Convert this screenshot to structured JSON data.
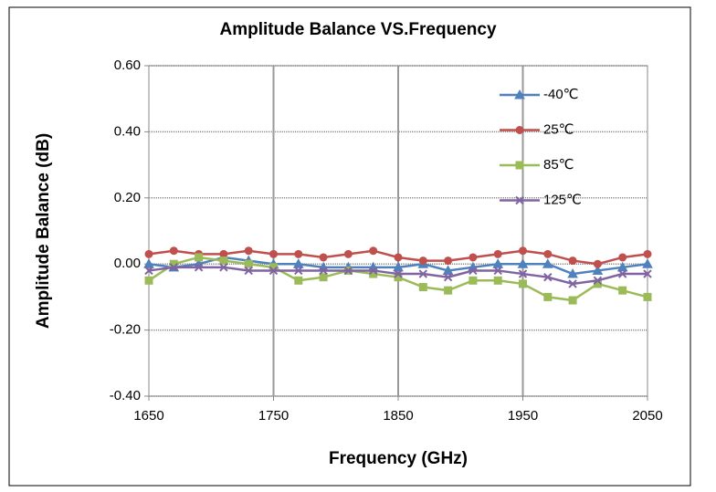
{
  "chart_data": {
    "type": "line",
    "title": "Amplitude Balance VS.Frequency",
    "x_label": "Frequency (GHz)",
    "y_label": "Amplitude Balance (dB)",
    "x": [
      1650,
      1670,
      1690,
      1710,
      1730,
      1750,
      1770,
      1790,
      1810,
      1830,
      1850,
      1870,
      1890,
      1910,
      1930,
      1950,
      1970,
      1990,
      2010,
      2030,
      2050
    ],
    "series": [
      {
        "name": "-40℃",
        "color": "#4f81bd",
        "marker": "triangle",
        "values": [
          0,
          -0.01,
          0,
          0.02,
          0.01,
          0,
          0,
          -0.01,
          -0.01,
          -0.01,
          -0.01,
          0,
          -0.02,
          -0.01,
          0,
          0,
          0,
          -0.03,
          -0.02,
          -0.01,
          0
        ]
      },
      {
        "name": "25℃",
        "color": "#c0504d",
        "marker": "circle",
        "values": [
          0.03,
          0.04,
          0.03,
          0.03,
          0.04,
          0.03,
          0.03,
          0.02,
          0.03,
          0.04,
          0.02,
          0.01,
          0.01,
          0.02,
          0.03,
          0.04,
          0.03,
          0.01,
          0,
          0.02,
          0.03
        ]
      },
      {
        "name": "85℃",
        "color": "#9bbb59",
        "marker": "square",
        "values": [
          -0.05,
          0,
          0.02,
          0.01,
          0,
          -0.01,
          -0.05,
          -0.04,
          -0.02,
          -0.03,
          -0.04,
          -0.07,
          -0.08,
          -0.05,
          -0.05,
          -0.06,
          -0.1,
          -0.11,
          -0.06,
          -0.08,
          -0.1
        ]
      },
      {
        "name": "125℃",
        "color": "#8064a2",
        "marker": "x",
        "values": [
          -0.02,
          -0.01,
          -0.01,
          -0.01,
          -0.02,
          -0.02,
          -0.02,
          -0.02,
          -0.02,
          -0.02,
          -0.03,
          -0.03,
          -0.04,
          -0.02,
          -0.02,
          -0.03,
          -0.04,
          -0.06,
          -0.05,
          -0.03,
          -0.03
        ]
      }
    ],
    "xlim": [
      1650,
      2050
    ],
    "xticks": [
      1650,
      1750,
      1850,
      1950,
      2050
    ],
    "ylim": [
      -0.4,
      0.6
    ],
    "yticks": [
      {
        "value": -0.4,
        "label": "-0.40"
      },
      {
        "value": -0.2,
        "label": "-0.20"
      },
      {
        "value": 0,
        "label": "0.00"
      },
      {
        "value": 0.2,
        "label": "0.20"
      },
      {
        "value": 0.4,
        "label": "0.40"
      },
      {
        "value": 0.6,
        "label": "0.60"
      }
    ],
    "grid": true
  }
}
